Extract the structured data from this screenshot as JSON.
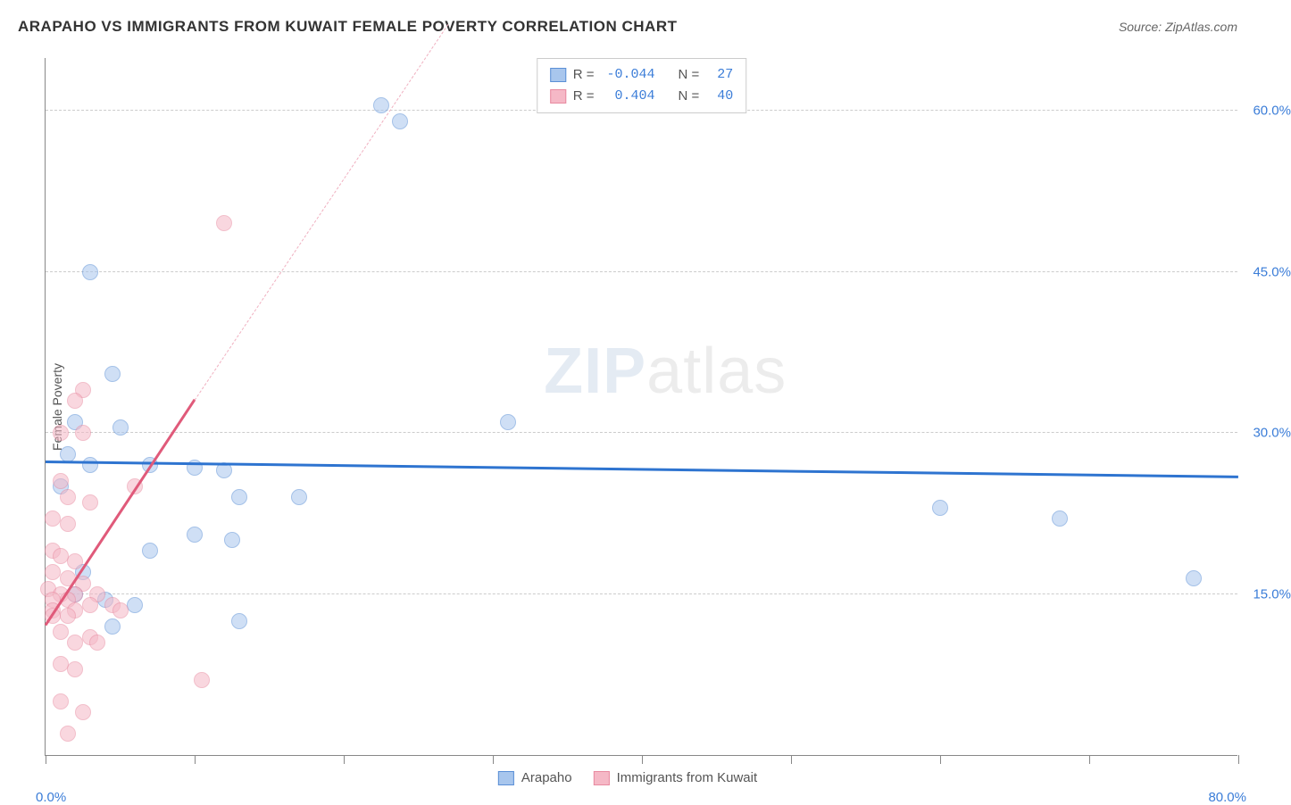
{
  "title": "ARAPAHO VS IMMIGRANTS FROM KUWAIT FEMALE POVERTY CORRELATION CHART",
  "source": "Source: ZipAtlas.com",
  "watermark_bold": "ZIP",
  "watermark_thin": "atlas",
  "ylabel": "Female Poverty",
  "chart": {
    "type": "scatter",
    "x_domain": [
      0,
      80
    ],
    "y_domain": [
      0,
      65
    ],
    "y_gridlines": [
      15,
      30,
      45,
      60
    ],
    "y_tick_labels": [
      "15.0%",
      "30.0%",
      "45.0%",
      "60.0%"
    ],
    "x_tick_positions": [
      0,
      10,
      20,
      30,
      40,
      50,
      60,
      70,
      80
    ],
    "x_start_label": "0.0%",
    "x_end_label": "80.0%",
    "grid_color": "#cccccc",
    "axis_color": "#888888",
    "background_color": "#ffffff",
    "point_radius": 9,
    "point_opacity": 0.55,
    "series": [
      {
        "name": "Arapaho",
        "color_fill": "#a8c6ed",
        "color_stroke": "#5a8fd6",
        "R": "-0.044",
        "N": "27",
        "regression": {
          "x1": 0,
          "y1": 27.2,
          "x2": 80,
          "y2": 25.8,
          "color": "#2e74d0",
          "width": 3,
          "dashed": false
        },
        "points": [
          [
            22.5,
            60.5
          ],
          [
            23.8,
            59.0
          ],
          [
            3.0,
            45.0
          ],
          [
            4.5,
            35.5
          ],
          [
            2.0,
            31.0
          ],
          [
            5.0,
            30.5
          ],
          [
            31.0,
            31.0
          ],
          [
            1.5,
            28.0
          ],
          [
            3.0,
            27.0
          ],
          [
            7.0,
            27.0
          ],
          [
            10.0,
            26.8
          ],
          [
            12.0,
            26.5
          ],
          [
            1.0,
            25.0
          ],
          [
            13.0,
            24.0
          ],
          [
            17.0,
            24.0
          ],
          [
            60.0,
            23.0
          ],
          [
            68.0,
            22.0
          ],
          [
            10.0,
            20.5
          ],
          [
            12.5,
            20.0
          ],
          [
            7.0,
            19.0
          ],
          [
            77.0,
            16.5
          ],
          [
            2.0,
            15.0
          ],
          [
            4.0,
            14.5
          ],
          [
            6.0,
            14.0
          ],
          [
            13.0,
            12.5
          ],
          [
            4.5,
            12.0
          ],
          [
            2.5,
            17.0
          ]
        ]
      },
      {
        "name": "Immigrants from Kuwait",
        "color_fill": "#f5b8c6",
        "color_stroke": "#e88aa0",
        "R": "0.404",
        "N": "40",
        "regression": {
          "x1": 0,
          "y1": 12.0,
          "x2": 10,
          "y2": 33.0,
          "color": "#e05a7a",
          "width": 3,
          "dashed": false
        },
        "regression_ext": {
          "x1": 10,
          "y1": 33.0,
          "x2": 27,
          "y2": 68.0,
          "color": "#f0b0c0",
          "width": 1,
          "dashed": true
        },
        "points": [
          [
            12.0,
            49.5
          ],
          [
            2.5,
            34.0
          ],
          [
            2.0,
            33.0
          ],
          [
            1.0,
            30.0
          ],
          [
            2.5,
            30.0
          ],
          [
            1.0,
            25.5
          ],
          [
            6.0,
            25.0
          ],
          [
            1.5,
            24.0
          ],
          [
            3.0,
            23.5
          ],
          [
            0.5,
            22.0
          ],
          [
            1.5,
            21.5
          ],
          [
            0.5,
            19.0
          ],
          [
            1.0,
            18.5
          ],
          [
            2.0,
            18.0
          ],
          [
            0.5,
            17.0
          ],
          [
            1.5,
            16.5
          ],
          [
            2.5,
            16.0
          ],
          [
            0.2,
            15.5
          ],
          [
            1.0,
            15.0
          ],
          [
            2.0,
            15.0
          ],
          [
            3.5,
            15.0
          ],
          [
            0.5,
            14.5
          ],
          [
            1.5,
            14.5
          ],
          [
            3.0,
            14.0
          ],
          [
            4.5,
            14.0
          ],
          [
            0.5,
            13.5
          ],
          [
            2.0,
            13.5
          ],
          [
            5.0,
            13.5
          ],
          [
            0.5,
            13.0
          ],
          [
            1.5,
            13.0
          ],
          [
            1.0,
            11.5
          ],
          [
            3.0,
            11.0
          ],
          [
            2.0,
            10.5
          ],
          [
            3.5,
            10.5
          ],
          [
            1.0,
            8.5
          ],
          [
            2.0,
            8.0
          ],
          [
            10.5,
            7.0
          ],
          [
            1.0,
            5.0
          ],
          [
            2.5,
            4.0
          ],
          [
            1.5,
            2.0
          ]
        ]
      }
    ]
  },
  "legend_top": {
    "r_label": "R =",
    "n_label": "N ="
  },
  "legend_bottom": [
    {
      "label": "Arapaho",
      "fill": "#a8c6ed",
      "stroke": "#5a8fd6"
    },
    {
      "label": "Immigrants from Kuwait",
      "fill": "#f5b8c6",
      "stroke": "#e88aa0"
    }
  ]
}
